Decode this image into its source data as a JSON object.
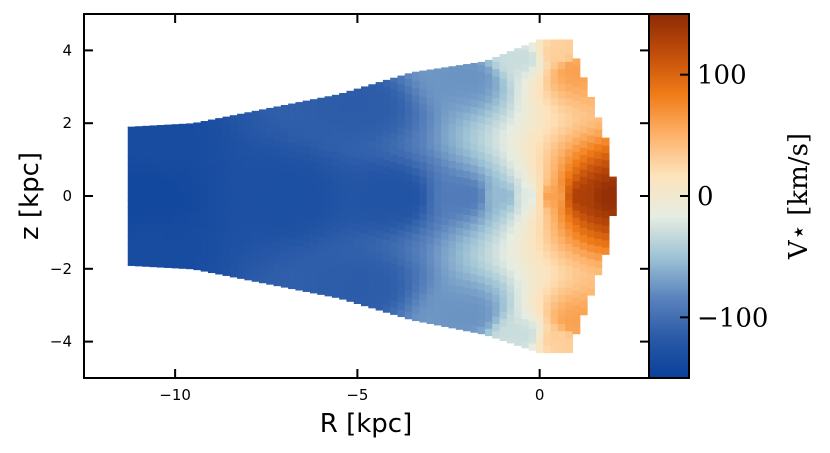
{
  "chart_data": {
    "type": "heatmap",
    "xlabel": "R [kpc]",
    "ylabel": "z [kpc]",
    "xlim": [
      -12.5,
      3.0
    ],
    "ylim": [
      -5.0,
      5.0
    ],
    "x_ticks": [
      -10,
      -5,
      0
    ],
    "x_tick_labels": [
      "−10",
      "−5",
      "0"
    ],
    "y_ticks": [
      -4,
      -2,
      0,
      2,
      4
    ],
    "y_tick_labels": [
      "−4",
      "−2",
      "0",
      "2",
      "4"
    ],
    "colorbar": {
      "label": "V⋆ [km/s]",
      "range": [
        -150,
        150
      ],
      "ticks": [
        -100,
        0,
        100
      ],
      "tick_labels": [
        "−100",
        "0",
        "100"
      ],
      "colormap": [
        "#08409a",
        "#2a5aa8",
        "#5b84bd",
        "#9fc4d6",
        "#e6ede2",
        "#fde3bc",
        "#fdb26a",
        "#f07c18",
        "#c24e0a",
        "#8c2a05"
      ]
    },
    "map_extent": {
      "r_min": -11.3,
      "r_max": 2.1,
      "z_top_profile": [
        [
          -11.3,
          1.9
        ],
        [
          -9.5,
          2.0
        ],
        [
          -7.5,
          2.4
        ],
        [
          -5.5,
          2.8
        ],
        [
          -3.5,
          3.4
        ],
        [
          -1.5,
          3.7
        ],
        [
          0.0,
          4.3
        ],
        [
          0.8,
          4.3
        ],
        [
          1.3,
          3.0
        ],
        [
          1.8,
          1.6
        ],
        [
          2.1,
          0.0
        ]
      ],
      "z_bottom_profile": [
        [
          -11.3,
          -1.9
        ],
        [
          -9.5,
          -2.0
        ],
        [
          -7.5,
          -2.4
        ],
        [
          -5.5,
          -2.8
        ],
        [
          -3.5,
          -3.4
        ],
        [
          -1.5,
          -3.8
        ],
        [
          0.0,
          -4.3
        ],
        [
          0.8,
          -4.3
        ],
        [
          1.3,
          -3.0
        ],
        [
          1.8,
          -1.6
        ],
        [
          2.1,
          0.0
        ]
      ]
    },
    "velocity_field": {
      "description_points": [
        [
          -11,
          0,
          -140
        ],
        [
          -7,
          0,
          -130
        ],
        [
          -4,
          0,
          -125
        ],
        [
          -2,
          0,
          -90
        ],
        [
          -1,
          0,
          -55
        ],
        [
          -0.3,
          0,
          -20
        ],
        [
          0.3,
          0,
          60
        ],
        [
          1.2,
          0,
          130
        ],
        [
          1.9,
          0,
          145
        ],
        [
          -11,
          1.5,
          -135
        ],
        [
          -5,
          2.5,
          -115
        ],
        [
          -2,
          3.3,
          -75
        ],
        [
          -0.5,
          3.8,
          -30
        ],
        [
          0.5,
          3.9,
          30
        ],
        [
          1.0,
          3.5,
          60
        ]
      ]
    }
  }
}
